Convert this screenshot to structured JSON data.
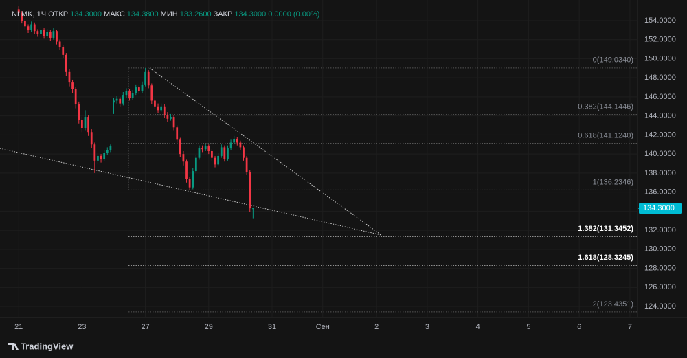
{
  "header": {
    "symbol": "NLMK, 1Ч",
    "items": [
      {
        "label": "ОТКР",
        "value": "134.3000"
      },
      {
        "label": "МАКС",
        "value": "134.3800"
      },
      {
        "label": "МИН",
        "value": "133.2600"
      },
      {
        "label": "ЗАКР",
        "value": "134.3000"
      }
    ],
    "change": "0.0000 (0.00%)"
  },
  "chart_data": {
    "type": "candlestick",
    "up_color": "#089981",
    "down_color": "#f23645",
    "x": [
      0,
      1,
      2,
      3,
      4,
      5,
      6,
      7,
      8,
      9,
      10,
      11,
      12,
      13,
      14,
      15,
      16,
      17,
      18,
      19,
      20,
      21,
      22,
      23,
      24,
      25,
      26,
      27,
      28,
      29,
      30,
      31,
      32,
      33,
      34,
      35,
      36,
      37,
      38,
      39,
      40,
      41,
      42,
      43,
      44,
      45,
      46,
      47,
      48,
      49,
      50,
      51,
      52,
      53,
      54,
      55,
      56,
      57,
      58,
      59,
      60,
      61,
      62,
      63,
      64,
      65,
      66,
      67,
      68,
      69,
      70,
      71,
      72,
      73,
      74
    ],
    "ohlc": [
      [
        155.2,
        155.5,
        154.6,
        154.8
      ],
      [
        154.8,
        155.0,
        153.7,
        154.0
      ],
      [
        154.0,
        154.2,
        153.1,
        153.4
      ],
      [
        153.4,
        153.6,
        152.7,
        153.0
      ],
      [
        153.0,
        153.9,
        152.8,
        153.6
      ],
      [
        153.6,
        153.8,
        152.6,
        152.9
      ],
      [
        152.9,
        153.1,
        152.3,
        152.6
      ],
      [
        152.6,
        153.3,
        152.4,
        153.0
      ],
      [
        153.0,
        153.2,
        152.1,
        152.4
      ],
      [
        152.4,
        153.1,
        152.2,
        152.8
      ],
      [
        152.8,
        153.0,
        151.9,
        152.2
      ],
      [
        152.2,
        153.2,
        152.0,
        152.9
      ],
      [
        152.9,
        153.0,
        151.5,
        151.8
      ],
      [
        151.8,
        152.0,
        150.9,
        151.2
      ],
      [
        151.2,
        151.4,
        150.1,
        150.4
      ],
      [
        150.4,
        150.6,
        148.2,
        148.6
      ],
      [
        148.6,
        148.9,
        147.1,
        147.5
      ],
      [
        147.5,
        147.8,
        146.4,
        146.8
      ],
      [
        146.8,
        147.0,
        144.8,
        145.2
      ],
      [
        145.2,
        145.5,
        143.2,
        143.6
      ],
      [
        143.6,
        143.9,
        142.3,
        142.7
      ],
      [
        142.7,
        144.6,
        142.5,
        143.9
      ],
      [
        143.9,
        144.1,
        141.9,
        142.3
      ],
      [
        142.3,
        142.6,
        140.6,
        141.0
      ],
      [
        141.0,
        141.2,
        138.0,
        139.3
      ],
      [
        139.3,
        140.1,
        139.0,
        139.8
      ],
      [
        139.8,
        140.0,
        139.1,
        139.5
      ],
      [
        139.5,
        140.4,
        139.3,
        140.1
      ],
      [
        140.1,
        140.7,
        139.9,
        140.4
      ],
      [
        140.4,
        141.0,
        140.2,
        140.8
      ],
      [
        145.4,
        145.9,
        144.2,
        145.6
      ],
      [
        145.6,
        146.1,
        145.3,
        145.8
      ],
      [
        145.8,
        146.0,
        145.0,
        145.3
      ],
      [
        145.3,
        146.5,
        145.1,
        146.2
      ],
      [
        146.2,
        146.9,
        145.9,
        146.6
      ],
      [
        146.6,
        146.8,
        145.6,
        145.9
      ],
      [
        145.9,
        146.7,
        145.7,
        146.4
      ],
      [
        146.4,
        147.3,
        146.2,
        147.0
      ],
      [
        147.0,
        147.2,
        146.3,
        146.6
      ],
      [
        146.6,
        147.6,
        146.4,
        147.3
      ],
      [
        147.3,
        149.03,
        147.1,
        148.6
      ],
      [
        148.6,
        148.8,
        146.9,
        147.2
      ],
      [
        147.2,
        147.4,
        145.2,
        145.6
      ],
      [
        145.6,
        145.9,
        144.7,
        145.0
      ],
      [
        145.0,
        145.3,
        144.3,
        144.6
      ],
      [
        144.6,
        145.3,
        144.4,
        145.0
      ],
      [
        145.0,
        145.2,
        143.8,
        144.1
      ],
      [
        144.1,
        144.4,
        143.4,
        143.7
      ],
      [
        143.7,
        144.2,
        143.5,
        143.9
      ],
      [
        143.9,
        144.1,
        142.5,
        142.8
      ],
      [
        142.8,
        143.0,
        141.2,
        141.5
      ],
      [
        141.5,
        141.7,
        139.7,
        140.0
      ],
      [
        140.0,
        140.3,
        138.8,
        139.2
      ],
      [
        139.2,
        139.4,
        137.0,
        137.4
      ],
      [
        137.4,
        137.6,
        136.23,
        136.5
      ],
      [
        136.5,
        138.5,
        136.3,
        138.2
      ],
      [
        138.2,
        139.9,
        138.0,
        139.6
      ],
      [
        139.6,
        140.9,
        139.4,
        140.6
      ],
      [
        140.6,
        140.9,
        140.2,
        140.5
      ],
      [
        140.5,
        141.1,
        140.3,
        140.8
      ],
      [
        140.8,
        141.0,
        140.0,
        140.3
      ],
      [
        140.3,
        140.5,
        139.3,
        139.6
      ],
      [
        139.6,
        139.8,
        138.6,
        138.9
      ],
      [
        138.9,
        140.1,
        138.7,
        139.8
      ],
      [
        139.8,
        141.0,
        139.6,
        140.7
      ],
      [
        140.7,
        140.9,
        139.2,
        139.5
      ],
      [
        139.5,
        140.9,
        139.3,
        140.6
      ],
      [
        140.6,
        141.5,
        140.4,
        141.2
      ],
      [
        141.2,
        141.9,
        141.0,
        141.6
      ],
      [
        141.6,
        141.8,
        140.9,
        141.2
      ],
      [
        141.2,
        141.4,
        140.4,
        140.7
      ],
      [
        140.7,
        140.9,
        139.3,
        139.6
      ],
      [
        139.6,
        139.8,
        137.8,
        138.1
      ],
      [
        138.1,
        138.3,
        133.9,
        134.3
      ],
      [
        134.3,
        134.38,
        133.26,
        134.3
      ]
    ],
    "xlim": [
      -5.9,
      195.4
    ],
    "xticks": [
      {
        "value": 0,
        "label": "21"
      },
      {
        "value": 20,
        "label": "23"
      },
      {
        "value": 40,
        "label": "27"
      },
      {
        "value": 60,
        "label": "29"
      },
      {
        "value": 80,
        "label": "31"
      },
      {
        "value": 96,
        "label": "Сен"
      },
      {
        "value": 113,
        "label": "2"
      },
      {
        "value": 129,
        "label": "3"
      },
      {
        "value": 145,
        "label": "4"
      },
      {
        "value": 161,
        "label": "5"
      },
      {
        "value": 177,
        "label": "6"
      },
      {
        "value": 193,
        "label": "7"
      }
    ],
    "ylim": [
      122.85,
      156.16
    ],
    "yticks": [
      {
        "value": 124,
        "label": "124.0000"
      },
      {
        "value": 126,
        "label": "126.0000"
      },
      {
        "value": 128,
        "label": "128.0000"
      },
      {
        "value": 130,
        "label": "130.0000"
      },
      {
        "value": 132,
        "label": "132.0000"
      },
      {
        "value": 134,
        "label": "134.0000"
      },
      {
        "value": 136,
        "label": "136.0000"
      },
      {
        "value": 138,
        "label": "138.0000"
      },
      {
        "value": 140,
        "label": "140.0000"
      },
      {
        "value": 142,
        "label": "142.0000"
      },
      {
        "value": 144,
        "label": "144.0000"
      },
      {
        "value": 146,
        "label": "146.0000"
      },
      {
        "value": 148,
        "label": "148.0000"
      },
      {
        "value": 150,
        "label": "150.0000"
      },
      {
        "value": 152,
        "label": "152.0000"
      },
      {
        "value": 154,
        "label": "154.0000"
      }
    ],
    "grid": true,
    "last_price": {
      "value": 134.3,
      "label": "134.3000",
      "color": "#00bcd4"
    },
    "fib_levels": [
      {
        "value": 149.034,
        "label": "0(149.0340)",
        "bold": false
      },
      {
        "value": 144.1446,
        "label": "0.382(144.1446)",
        "bold": false
      },
      {
        "value": 141.124,
        "label": "0.618(141.1240)",
        "bold": false
      },
      {
        "value": 136.2346,
        "label": "1(136.2346)",
        "bold": false
      },
      {
        "value": 131.3452,
        "label": "1.382(131.3452)",
        "bold": true
      },
      {
        "value": 128.3245,
        "label": "1.618(128.3245)",
        "bold": true
      },
      {
        "value": 123.4351,
        "label": "2(123.4351)",
        "bold": false
      }
    ]
  },
  "footer": {
    "brand": "TradingView"
  }
}
